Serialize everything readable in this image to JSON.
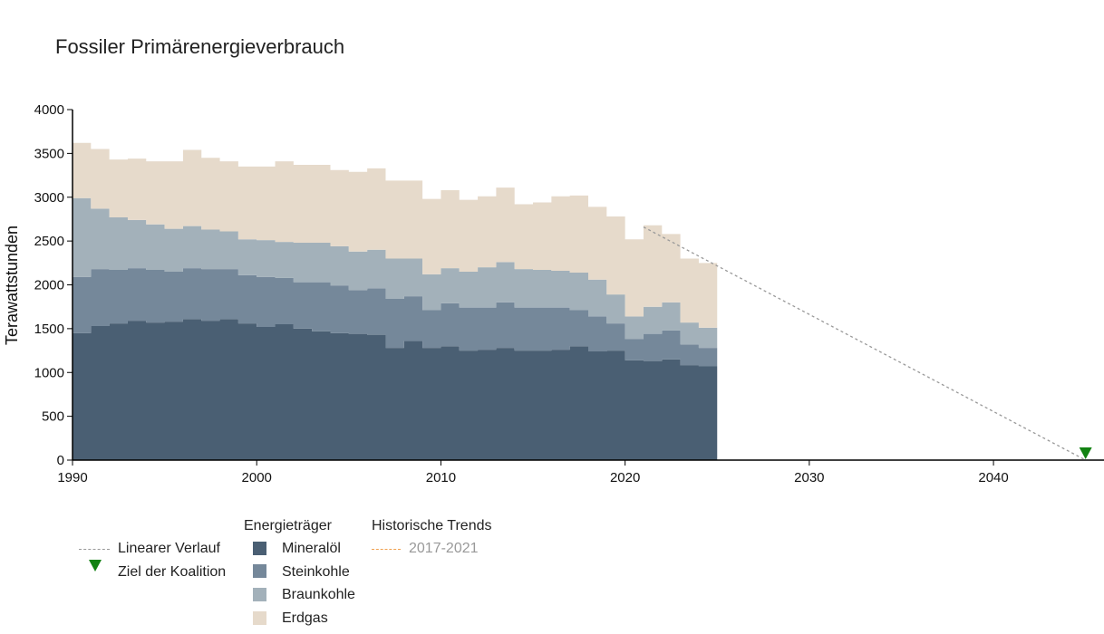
{
  "title": "Fossiler Primärenergieverbrauch",
  "colors": {
    "mineraloel": "#4a5f73",
    "steinkohle": "#75889a",
    "braunkohle": "#a3b1ba",
    "erdgas": "#e6dacb",
    "linear": "#999999",
    "target": "#128212",
    "trend": "#f0a050"
  },
  "legend": {
    "misc": [
      {
        "label": "Linearer Verlauf",
        "icon": "dashed-line-icon"
      },
      {
        "label": "Ziel der Koalition",
        "icon": "green-triangle-marker-icon"
      }
    ],
    "carriers_title": "Energieträger",
    "carriers": [
      "Mineralöl",
      "Steinkohle",
      "Braunkohle",
      "Erdgas"
    ],
    "trends_title": "Historische Trends",
    "trends": [
      "2017-2021"
    ]
  },
  "chart_data": {
    "type": "area",
    "stacked": true,
    "step": true,
    "ylabel": "Terawattstunden",
    "xlabel": "",
    "xlim": [
      1990,
      2046
    ],
    "ylim": [
      0,
      4000
    ],
    "xticks": [
      1990,
      2000,
      2010,
      2020,
      2030,
      2040
    ],
    "yticks": [
      0,
      500,
      1000,
      1500,
      2000,
      2500,
      3000,
      3500,
      4000
    ],
    "x": [
      1990,
      1991,
      1992,
      1993,
      1994,
      1995,
      1996,
      1997,
      1998,
      1999,
      2000,
      2001,
      2002,
      2003,
      2004,
      2005,
      2006,
      2007,
      2008,
      2009,
      2010,
      2011,
      2012,
      2013,
      2014,
      2015,
      2016,
      2017,
      2018,
      2019,
      2020,
      2021,
      2022,
      2023,
      2024
    ],
    "series": [
      {
        "name": "Mineralöl",
        "values": [
          1450,
          1530,
          1560,
          1590,
          1570,
          1580,
          1610,
          1590,
          1610,
          1560,
          1520,
          1550,
          1500,
          1470,
          1450,
          1440,
          1430,
          1280,
          1360,
          1280,
          1300,
          1250,
          1260,
          1280,
          1250,
          1250,
          1260,
          1300,
          1240,
          1250,
          1140,
          1130,
          1150,
          1080,
          1070
        ]
      },
      {
        "name": "Steinkohle",
        "values": [
          640,
          650,
          610,
          600,
          600,
          570,
          580,
          590,
          570,
          550,
          570,
          530,
          530,
          560,
          540,
          500,
          530,
          560,
          510,
          430,
          490,
          490,
          480,
          520,
          490,
          490,
          480,
          410,
          400,
          310,
          240,
          310,
          330,
          240,
          210
        ]
      },
      {
        "name": "Braunkohle",
        "values": [
          900,
          690,
          600,
          550,
          520,
          490,
          480,
          450,
          430,
          410,
          420,
          410,
          450,
          450,
          450,
          440,
          440,
          460,
          430,
          410,
          400,
          410,
          460,
          460,
          440,
          430,
          420,
          430,
          420,
          330,
          260,
          310,
          320,
          250,
          230
        ]
      },
      {
        "name": "Erdgas",
        "values": [
          630,
          680,
          660,
          700,
          720,
          770,
          870,
          820,
          800,
          830,
          840,
          920,
          890,
          890,
          870,
          910,
          930,
          890,
          890,
          860,
          890,
          820,
          810,
          850,
          740,
          770,
          850,
          880,
          830,
          890,
          880,
          930,
          780,
          730,
          740
        ]
      }
    ],
    "linear_trend": {
      "name": "Linearer Verlauf",
      "points": [
        [
          2021,
          2660
        ],
        [
          2045,
          0
        ]
      ]
    },
    "target": {
      "name": "Ziel der Koalition",
      "x": 2045,
      "y": 0
    },
    "historical_trends": [
      {
        "name": "2017-2021",
        "points": []
      }
    ],
    "legend_position": "bottom-left"
  }
}
